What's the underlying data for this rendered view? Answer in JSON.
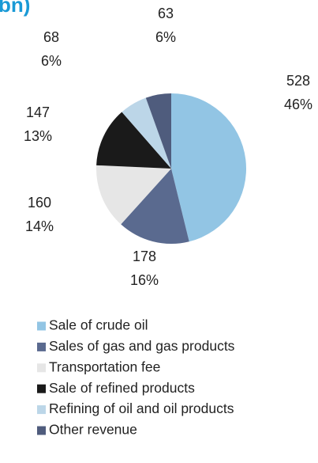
{
  "chart_data": {
    "type": "pie",
    "title": "bn)",
    "categories": [
      "Sale of crude oil",
      "Sales of gas and gas products",
      "Transportation fee",
      "Sale of refined products",
      "Refining of oil and oil products",
      "Other revenue"
    ],
    "values": [
      528,
      178,
      160,
      147,
      68,
      63
    ],
    "percents": [
      46,
      16,
      14,
      13,
      6,
      6
    ],
    "percent_labels": [
      "46%",
      "16%",
      "14%",
      "13%",
      "6%",
      "6%"
    ],
    "colors": [
      "#92c5e4",
      "#5a6a8f",
      "#e6e6e6",
      "#1a1a1a",
      "#bcd6e8",
      "#4f5c7d"
    ]
  }
}
